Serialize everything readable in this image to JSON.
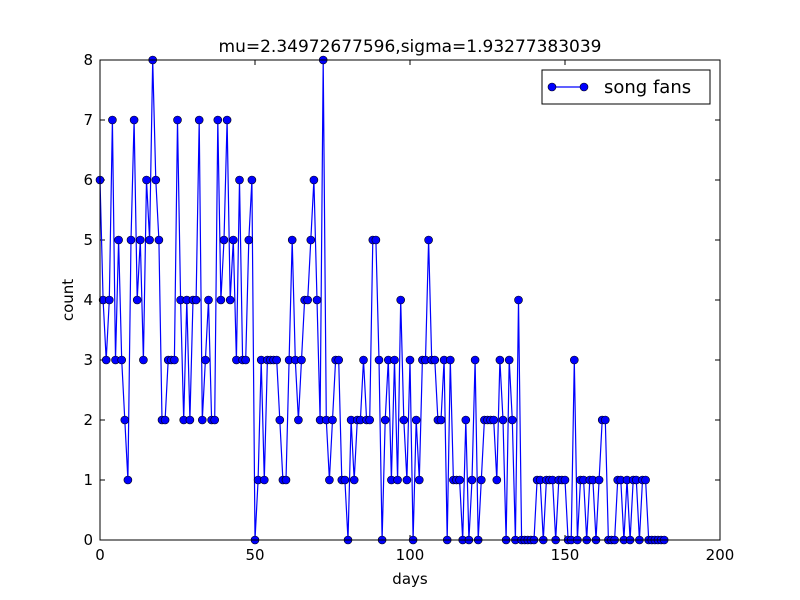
{
  "chart_data": {
    "type": "line",
    "title": "mu=2.34972677596,sigma=1.93277383039",
    "xlabel": "days",
    "ylabel": "count",
    "xlim": [
      0,
      200
    ],
    "ylim": [
      0,
      8
    ],
    "xticks": [
      "0",
      "50",
      "100",
      "150",
      "200"
    ],
    "yticks": [
      "0",
      "1",
      "2",
      "3",
      "4",
      "5",
      "6",
      "7",
      "8"
    ],
    "grid": false,
    "legend_position": "top-right",
    "series": [
      {
        "name": "song fans",
        "color": "#0000ff",
        "marker": "circle",
        "x": [
          0,
          1,
          2,
          3,
          4,
          5,
          6,
          7,
          8,
          9,
          10,
          11,
          12,
          13,
          14,
          15,
          16,
          17,
          18,
          19,
          20,
          21,
          22,
          23,
          24,
          25,
          26,
          27,
          28,
          29,
          30,
          31,
          32,
          33,
          34,
          35,
          36,
          37,
          38,
          39,
          40,
          41,
          42,
          43,
          44,
          45,
          46,
          47,
          48,
          49,
          50,
          51,
          52,
          53,
          54,
          55,
          56,
          57,
          58,
          59,
          60,
          61,
          62,
          63,
          64,
          65,
          66,
          67,
          68,
          69,
          70,
          71,
          72,
          73,
          74,
          75,
          76,
          77,
          78,
          79,
          80,
          81,
          82,
          83,
          84,
          85,
          86,
          87,
          88,
          89,
          90,
          91,
          92,
          93,
          94,
          95,
          96,
          97,
          98,
          99,
          100,
          101,
          102,
          103,
          104,
          105,
          106,
          107,
          108,
          109,
          110,
          111,
          112,
          113,
          114,
          115,
          116,
          117,
          118,
          119,
          120,
          121,
          122,
          123,
          124,
          125,
          126,
          127,
          128,
          129,
          130,
          131,
          132,
          133,
          134,
          135,
          136,
          137,
          138,
          139,
          140,
          141,
          142,
          143,
          144,
          145,
          146,
          147,
          148,
          149,
          150,
          151,
          152,
          153,
          154,
          155,
          156,
          157,
          158,
          159,
          160,
          161,
          162,
          163,
          164,
          165,
          166,
          167,
          168,
          169,
          170,
          171,
          172,
          173,
          174,
          175,
          176,
          177,
          178,
          179,
          180,
          181,
          182
        ],
        "values": [
          6,
          4,
          3,
          4,
          7,
          3,
          5,
          3,
          2,
          1,
          5,
          7,
          4,
          5,
          3,
          6,
          5,
          8,
          6,
          5,
          2,
          2,
          3,
          3,
          3,
          7,
          4,
          2,
          4,
          2,
          4,
          4,
          7,
          2,
          3,
          4,
          2,
          2,
          7,
          4,
          5,
          7,
          4,
          5,
          3,
          6,
          3,
          3,
          5,
          6,
          0,
          1,
          3,
          1,
          3,
          3,
          3,
          3,
          2,
          1,
          1,
          3,
          5,
          3,
          2,
          3,
          4,
          4,
          5,
          6,
          4,
          2,
          8,
          2,
          1,
          2,
          3,
          3,
          1,
          1,
          0,
          2,
          1,
          2,
          2,
          3,
          2,
          2,
          5,
          5,
          3,
          0,
          2,
          3,
          1,
          3,
          1,
          4,
          2,
          1,
          3,
          0,
          2,
          1,
          3,
          3,
          5,
          3,
          3,
          2,
          2,
          3,
          0,
          3,
          1,
          1,
          1,
          0,
          2,
          0,
          1,
          3,
          0,
          1,
          2,
          2,
          2,
          2,
          1,
          3,
          2,
          0,
          3,
          2,
          0,
          4,
          0,
          0,
          0,
          0,
          0,
          1,
          1,
          0,
          1,
          1,
          1,
          0,
          1,
          1,
          1,
          0,
          0,
          3,
          0,
          1,
          1,
          0,
          1,
          1,
          0,
          1,
          2,
          2,
          0,
          0,
          0,
          1,
          1,
          0,
          1,
          0,
          1,
          1,
          0,
          1,
          1,
          0,
          0,
          0,
          0,
          0,
          0
        ]
      }
    ]
  }
}
